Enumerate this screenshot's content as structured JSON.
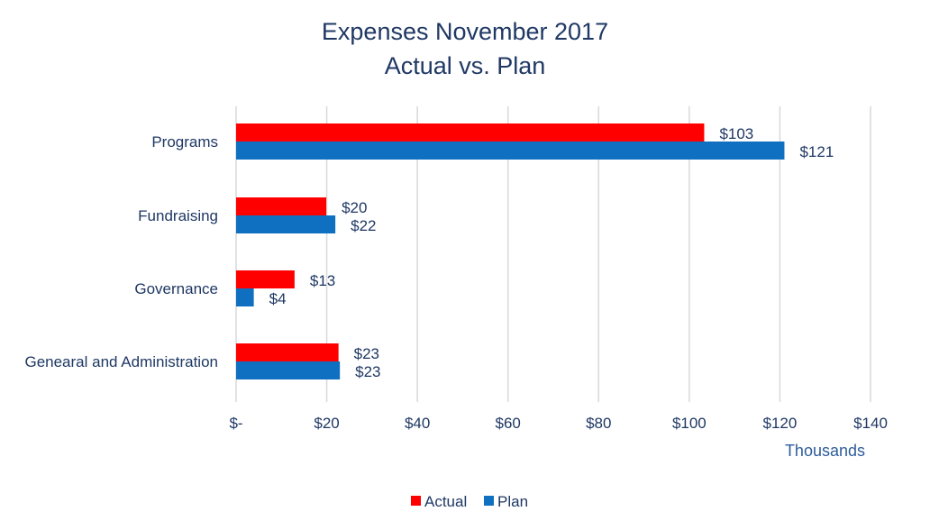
{
  "chart_data": {
    "type": "bar",
    "orientation": "horizontal",
    "title": [
      "Expenses November 2017",
      "Actual vs. Plan"
    ],
    "categories": [
      "Programs",
      "Fundraising",
      "Governance",
      "Genearal and Administration"
    ],
    "series": [
      {
        "name": "Actual",
        "color": "#ff0000",
        "values": [
          103.3,
          19.9,
          12.9,
          22.6
        ],
        "labels": [
          "$103",
          "$20",
          "$13",
          "$23"
        ]
      },
      {
        "name": "Plan",
        "color": "#0f6fc0",
        "values": [
          121,
          21.9,
          3.9,
          22.9
        ],
        "labels": [
          "$121",
          "$22",
          "$4",
          "$23"
        ]
      }
    ],
    "xlim": [
      0,
      140
    ],
    "xticks": [
      0,
      20,
      40,
      60,
      80,
      100,
      120,
      140
    ],
    "xtick_labels": [
      "$-",
      "$20",
      "$40",
      "$60",
      "$80",
      "$100",
      "$120",
      "$140"
    ],
    "unit_label": "Thousands",
    "grid": true,
    "legend_position": "bottom"
  }
}
